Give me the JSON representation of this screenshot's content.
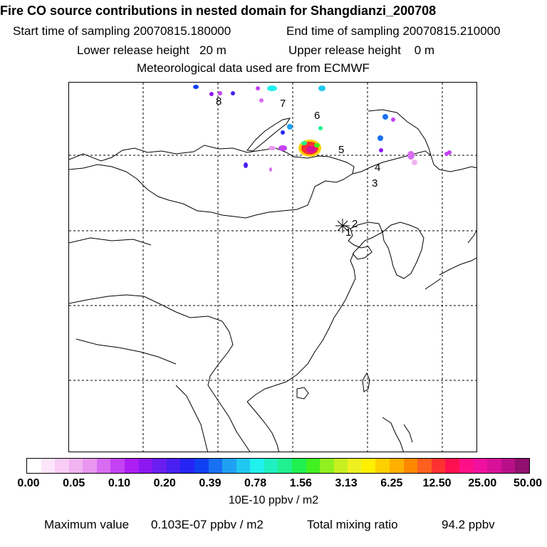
{
  "header": {
    "title": "Fire CO source contributions in nested domain for Shangdianzi_200708",
    "start_sampling": "Start time of sampling 20070815.180000",
    "end_sampling": "End time of sampling 20070815.210000",
    "lower_release": "Lower release height   20 m",
    "upper_release": "Upper release height    0 m",
    "met_data": "Meteorological data used are from ECMWF"
  },
  "map": {
    "point_labels": [
      "1",
      "2",
      "3",
      "4",
      "5",
      "6",
      "7",
      "8"
    ],
    "receptor_marker": "star-icon"
  },
  "colorbar": {
    "colors": [
      "#ffffff",
      "#fde6fb",
      "#f9cdf5",
      "#f2b3f1",
      "#e896ef",
      "#d86cf1",
      "#c442f3",
      "#ad1ef4",
      "#8c18f2",
      "#6a1ef0",
      "#4a20f2",
      "#2424f5",
      "#1040f2",
      "#1870f2",
      "#20a0f2",
      "#20c8f0",
      "#20f0ee",
      "#20f0c0",
      "#20f090",
      "#20f050",
      "#40f020",
      "#90f020",
      "#c8f020",
      "#eef020",
      "#fff000",
      "#ffd000",
      "#ffb000",
      "#ff8800",
      "#ff6020",
      "#ff3030",
      "#ff1050",
      "#ff1088",
      "#f010a0",
      "#d81098",
      "#b81088",
      "#901070"
    ],
    "tick_labels": [
      "0.00",
      "0.05",
      "0.10",
      "0.20",
      "0.39",
      "0.78",
      "1.56",
      "3.13",
      "6.25",
      "12.50",
      "25.00",
      "50.00"
    ],
    "unit": "10E-10 ppbv / m2"
  },
  "footer": {
    "max_label": "Maximum value",
    "max_value": "0.103E-07 ppbv / m2",
    "total_label": "Total mixing ratio",
    "total_value": "94.2 ppbv"
  }
}
